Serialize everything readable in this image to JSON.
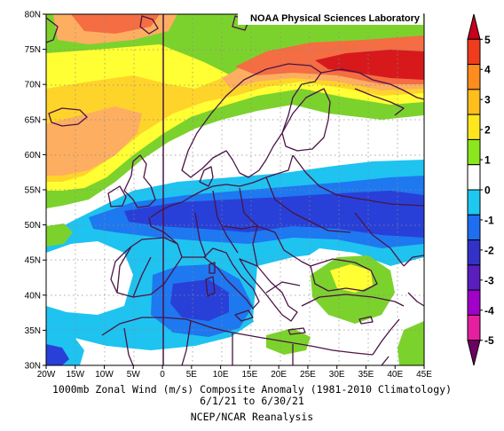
{
  "credit": "NOAA Physical Sciences Laboratory",
  "caption": {
    "line1": "1000mb Zonal Wind (m/s) Composite Anomaly (1981-2010 Climatology)",
    "line2": "6/1/21 to 6/30/21",
    "line3": "NCEP/NCAR Reanalysis"
  },
  "axes": {
    "lat_labels": [
      "30N",
      "35N",
      "40N",
      "45N",
      "50N",
      "55N",
      "60N",
      "65N",
      "70N",
      "75N",
      "80N"
    ],
    "lon_labels": [
      "20W",
      "15W",
      "10W",
      "5W",
      "0",
      "5E",
      "10E",
      "15E",
      "20E",
      "25E",
      "30E",
      "35E",
      "40E",
      "45E"
    ]
  },
  "colorbar": {
    "labels": [
      "5",
      "4",
      "3",
      "2",
      "1",
      "0",
      "-1",
      "-2",
      "-3",
      "-4",
      "-5"
    ],
    "colors": [
      "#c8001e",
      "#f03c1e",
      "#ff8c1e",
      "#ffbe1e",
      "#ffe61e",
      "#8ce61e",
      "#ffffff",
      "#1ec8f0",
      "#1e6ef0",
      "#3232c8",
      "#5a1ebe",
      "#a000c8",
      "#e61ea0",
      "#6e0064"
    ]
  },
  "colors": {
    "pos5": "#d7191c",
    "pos4": "#f46d43",
    "pos3": "#fdae61",
    "pos2": "#ffd42a",
    "pos1": "#ffff33",
    "pos05": "#7cd22c",
    "zero": "#ffffff",
    "neg05": "#1ec3f0",
    "neg1": "#1e78f0",
    "neg2": "#2840d8",
    "neg3": "#4b1ec8",
    "coast": "#4a1446"
  }
}
